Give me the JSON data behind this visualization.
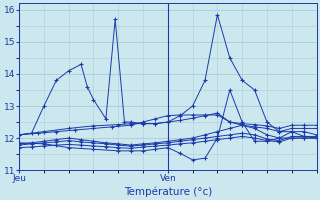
{
  "xlabel": "Température (°c)",
  "xlim": [
    0,
    48
  ],
  "ylim": [
    11,
    16.2
  ],
  "yticks": [
    11,
    12,
    13,
    14,
    15,
    16
  ],
  "day_ticks": [
    0,
    24
  ],
  "day_labels": [
    "Jeu",
    "Ven"
  ],
  "bg_color": "#cce8ee",
  "grid_color": "#aaccd4",
  "line_color": "#1a3aaa",
  "figsize": [
    3.2,
    2.0
  ],
  "dpi": 100,
  "series": [
    {
      "x": [
        0,
        2,
        4,
        6,
        8,
        10,
        11,
        12,
        14,
        15.5,
        17,
        18,
        20,
        22,
        24,
        26,
        28,
        30,
        32,
        34,
        36,
        38,
        40,
        42,
        44,
        46,
        48
      ],
      "y": [
        12.1,
        12.15,
        13.0,
        13.8,
        14.1,
        14.3,
        13.6,
        13.2,
        12.6,
        15.7,
        12.5,
        12.5,
        12.45,
        12.45,
        12.5,
        12.7,
        13.0,
        13.8,
        15.85,
        14.5,
        13.8,
        13.5,
        12.5,
        12.2,
        12.2,
        12.05,
        12.0
      ]
    },
    {
      "x": [
        0,
        2,
        4,
        6,
        8,
        10,
        12,
        14,
        16,
        18,
        20,
        22,
        24,
        26,
        28,
        30,
        32,
        34,
        36,
        38,
        40,
        42,
        44,
        46,
        48
      ],
      "y": [
        11.7,
        11.72,
        11.75,
        11.78,
        11.8,
        11.78,
        11.75,
        11.73,
        11.7,
        11.68,
        11.72,
        11.75,
        11.78,
        11.82,
        11.85,
        11.9,
        11.95,
        12.0,
        12.05,
        12.0,
        11.92,
        11.88,
        12.0,
        12.0,
        12.0
      ]
    },
    {
      "x": [
        0,
        2,
        4,
        6,
        8,
        10,
        12,
        14,
        16,
        18,
        20,
        22,
        24,
        26,
        28,
        30,
        32,
        34,
        36,
        38,
        40,
        42,
        44,
        46,
        48
      ],
      "y": [
        11.78,
        11.82,
        11.85,
        11.88,
        11.92,
        11.88,
        11.85,
        11.82,
        11.78,
        11.75,
        11.78,
        11.82,
        11.85,
        11.9,
        11.95,
        12.0,
        12.05,
        12.1,
        12.15,
        12.1,
        11.97,
        11.92,
        12.05,
        12.05,
        12.05
      ]
    },
    {
      "x": [
        0,
        2,
        4,
        6,
        8,
        10,
        12,
        14,
        16,
        18,
        20,
        22,
        24,
        26,
        28,
        30,
        32,
        34,
        36,
        38,
        40,
        42,
        44,
        46,
        48
      ],
      "y": [
        11.82,
        11.85,
        11.9,
        11.95,
        12.0,
        11.95,
        11.9,
        11.85,
        11.82,
        11.78,
        11.82,
        11.85,
        11.9,
        11.95,
        12.0,
        12.1,
        12.2,
        12.3,
        12.4,
        12.3,
        12.1,
        12.0,
        12.2,
        12.2,
        12.1
      ]
    },
    {
      "x": [
        0,
        4,
        8,
        12,
        16,
        18,
        20,
        22,
        24,
        26,
        28,
        30,
        32,
        34,
        36,
        38,
        40,
        42,
        44,
        46,
        48
      ],
      "y": [
        12.1,
        12.2,
        12.3,
        12.38,
        12.42,
        12.45,
        12.45,
        12.45,
        12.5,
        12.55,
        12.62,
        12.7,
        12.78,
        12.5,
        12.45,
        12.42,
        12.38,
        12.3,
        12.4,
        12.4,
        12.4
      ]
    },
    {
      "x": [
        0,
        3,
        6,
        9,
        12,
        15,
        18,
        20,
        22,
        24,
        26,
        28,
        30,
        32,
        34,
        36,
        38,
        40,
        42,
        44,
        46,
        48
      ],
      "y": [
        12.1,
        12.15,
        12.2,
        12.25,
        12.3,
        12.35,
        12.4,
        12.5,
        12.6,
        12.7,
        12.72,
        12.72,
        12.72,
        12.72,
        12.5,
        12.4,
        12.35,
        12.3,
        12.2,
        12.3,
        12.3,
        12.3
      ]
    },
    {
      "x": [
        0,
        4,
        8,
        12,
        16,
        18,
        20,
        22,
        24,
        26,
        28,
        30,
        32,
        34,
        36,
        38,
        40,
        42,
        44,
        46,
        48
      ],
      "y": [
        11.85,
        11.82,
        11.7,
        11.65,
        11.6,
        11.6,
        11.6,
        11.65,
        11.7,
        11.52,
        11.32,
        11.37,
        12.0,
        13.5,
        12.5,
        11.9,
        11.9,
        12.0,
        12.0,
        12.0,
        12.0
      ]
    }
  ]
}
